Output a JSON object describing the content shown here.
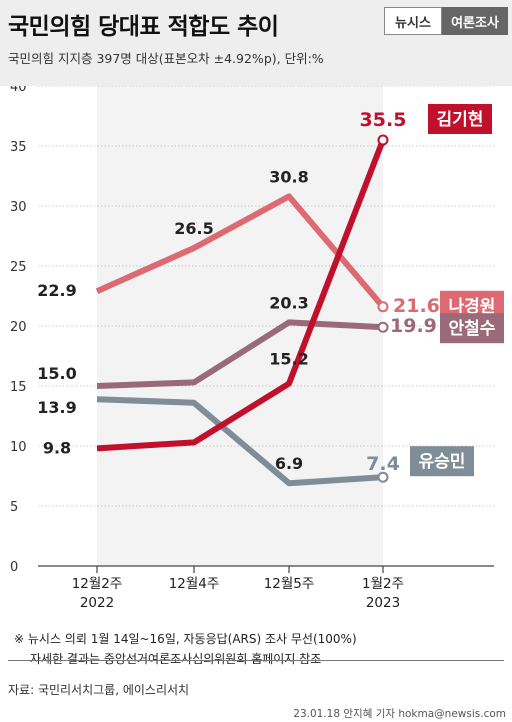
{
  "header": {
    "title": "국민의힘 당대표 적합도 추이",
    "brand_news": "뉴시스",
    "brand_poll": "여론조사",
    "subtitle": "국민의힘 지지층 397명 대상(표본오차 ±4.92%p), 단위:%"
  },
  "chart_data": {
    "type": "line",
    "categories": [
      "12월2주\n2022",
      "12월4주",
      "12월5주",
      "1월2주\n2023"
    ],
    "ylim": [
      0,
      40
    ],
    "yticks": [
      0,
      5,
      10,
      15,
      20,
      25,
      30,
      35,
      40
    ],
    "series": [
      {
        "name": "나경원",
        "color": "#dd6a73",
        "values": [
          22.9,
          26.5,
          30.8,
          21.6
        ],
        "shown": [
          true,
          true,
          true,
          true
        ]
      },
      {
        "name": "안철수",
        "color": "#9a6a79",
        "values": [
          15.0,
          15.3,
          20.3,
          19.9
        ],
        "shown": [
          true,
          false,
          true,
          true
        ]
      },
      {
        "name": "유승민",
        "color": "#7e8d98",
        "values": [
          13.9,
          13.6,
          6.9,
          7.4
        ],
        "shown": [
          true,
          false,
          true,
          true
        ]
      },
      {
        "name": "김기현",
        "color": "#c0102c",
        "values": [
          9.8,
          10.3,
          15.2,
          35.5
        ],
        "shown": [
          true,
          false,
          true,
          true
        ]
      }
    ]
  },
  "footer": {
    "note1": "※ 뉴시스 의뢰 1월 14일~16일, 자동응답(ARS) 조사 무선(100%)",
    "note2": "자세한 결과는 중앙선거여론조사심의위원회 홈페이지 참조",
    "source": "자료: 국민리서치그룹, 에이스리서치",
    "credit": "23.01.18 안지혜 기자 hokma@newsis.com"
  }
}
